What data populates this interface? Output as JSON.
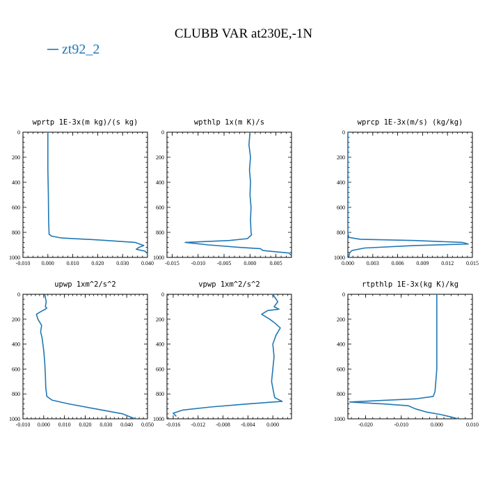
{
  "figure": {
    "title": "CLUBB VAR at230E,-1N",
    "legend": {
      "label": "zt92_2",
      "color": "#1f77b4"
    }
  },
  "chart_data": [
    {
      "type": "line",
      "title": "wprtp  1E-3x(m kg)/(s kg)",
      "xlim": [
        -0.01,
        0.04
      ],
      "ylim": [
        1000,
        0
      ],
      "xticks": [
        -0.01,
        0.0,
        0.01,
        0.02,
        0.03,
        0.04
      ],
      "xticklabels": [
        "-0.010",
        "0.000",
        "0.010",
        "0.020",
        "0.030",
        "0.040"
      ],
      "yticks": [
        0,
        200,
        400,
        600,
        800,
        1000
      ],
      "series": [
        {
          "color": "#1f77b4",
          "x": [
            0.0,
            0.0,
            0.0002,
            0.0003,
            0.0005,
            0.0015,
            0.0055,
            0.02,
            0.035,
            0.0385,
            0.0365,
            0.0355,
            0.039,
            0.04
          ],
          "y": [
            0,
            300,
            500,
            700,
            815,
            830,
            845,
            860,
            880,
            905,
            920,
            935,
            950,
            970
          ]
        }
      ]
    },
    {
      "type": "line",
      "title": "wpthlp  1x(m K)/s",
      "xlim": [
        -0.016,
        0.008
      ],
      "ylim": [
        1000,
        0
      ],
      "xticks": [
        -0.015,
        -0.01,
        -0.005,
        0.0,
        0.005
      ],
      "xticklabels": [
        "-0.015",
        "-0.010",
        "-0.005",
        "0.000",
        "0.005"
      ],
      "yticks": [
        0,
        200,
        400,
        600,
        800,
        1000
      ],
      "series": [
        {
          "color": "#1f77b4",
          "x": [
            0.0,
            -0.0002,
            0.0001,
            -0.0001,
            0.0001,
            0.0,
            0.0002,
            0.0001,
            0.0002,
            0.0003,
            -0.0005,
            -0.004,
            -0.0125,
            -0.008,
            -0.002,
            0.002,
            0.0025,
            0.0075,
            0.008
          ],
          "y": [
            0,
            100,
            200,
            300,
            400,
            500,
            600,
            700,
            800,
            820,
            850,
            865,
            880,
            900,
            920,
            930,
            945,
            965,
            985
          ]
        }
      ]
    },
    {
      "type": "line",
      "title": "wprcp  1E-3x(m/s) (kg/kg)",
      "xlim": [
        0.0,
        0.015
      ],
      "ylim": [
        1000,
        0
      ],
      "xticks": [
        0.0,
        0.003,
        0.006,
        0.009,
        0.012,
        0.015
      ],
      "xticklabels": [
        "0.000",
        "0.003",
        "0.006",
        "0.009",
        "0.012",
        "0.015"
      ],
      "yticks": [
        0,
        200,
        400,
        600,
        800,
        1000
      ],
      "series": [
        {
          "color": "#1f77b4",
          "x": [
            0.0,
            0.0,
            0.0,
            0.0001,
            0.0015,
            0.008,
            0.0138,
            0.0145,
            0.008,
            0.002,
            0.0005,
            0.0002,
            0.0001
          ],
          "y": [
            0,
            400,
            800,
            840,
            855,
            865,
            880,
            893,
            905,
            925,
            945,
            965,
            1000
          ]
        }
      ]
    },
    {
      "type": "line",
      "title": "upwp  1xm^2/s^2",
      "xlim": [
        -0.01,
        0.05
      ],
      "ylim": [
        1000,
        0
      ],
      "xticks": [
        -0.01,
        0.0,
        0.01,
        0.02,
        0.03,
        0.04,
        0.05
      ],
      "xticklabels": [
        "-0.010",
        "0.000",
        "0.010",
        "0.020",
        "0.030",
        "0.040",
        "0.050"
      ],
      "yticks": [
        0,
        200,
        400,
        600,
        800,
        1000
      ],
      "series": [
        {
          "color": "#1f77b4",
          "x": [
            0.0005,
            0.0012,
            0.0008,
            0.0015,
            0.0008,
            -0.001,
            -0.0035,
            -0.0028,
            -0.001,
            -0.0015,
            -0.0008,
            0.0,
            0.0005,
            0.0008,
            0.001,
            0.0015,
            0.004,
            0.012,
            0.025,
            0.038,
            0.044
          ],
          "y": [
            0,
            60,
            100,
            110,
            120,
            135,
            160,
            200,
            250,
            300,
            350,
            450,
            550,
            650,
            750,
            820,
            850,
            880,
            920,
            960,
            1000
          ]
        }
      ]
    },
    {
      "type": "line",
      "title": "vpwp  1xm^2/s^2",
      "xlim": [
        -0.017,
        0.003
      ],
      "ylim": [
        1000,
        0
      ],
      "xticks": [
        -0.016,
        -0.012,
        -0.008,
        -0.004,
        0.0
      ],
      "xticklabels": [
        "-0.016",
        "-0.012",
        "-0.008",
        "-0.004",
        "0.000"
      ],
      "yticks": [
        0,
        200,
        400,
        600,
        800,
        1000
      ],
      "series": [
        {
          "color": "#1f77b4",
          "x": [
            0.0,
            0.0008,
            0.0002,
            0.001,
            -0.0008,
            -0.0018,
            -0.0005,
            0.0003,
            0.0012,
            0.0005,
            0.0,
            0.0002,
            0.0,
            -0.0002,
            0.0001,
            0.0003,
            0.0015,
            -0.004,
            -0.01,
            -0.0145,
            -0.016,
            -0.0155
          ],
          "y": [
            0,
            60,
            100,
            120,
            130,
            160,
            200,
            230,
            270,
            330,
            400,
            500,
            600,
            700,
            780,
            830,
            860,
            880,
            905,
            930,
            955,
            980
          ]
        }
      ]
    },
    {
      "type": "line",
      "title": "rtpthlp  1E-3x(kg K)/kg",
      "xlim": [
        -0.025,
        0.01
      ],
      "ylim": [
        1000,
        0
      ],
      "xticks": [
        -0.02,
        -0.01,
        0.0,
        0.01
      ],
      "xticklabels": [
        "-0.020",
        "-0.010",
        "0.000",
        "0.010"
      ],
      "yticks": [
        0,
        200,
        400,
        600,
        800,
        1000
      ],
      "series": [
        {
          "color": "#1f77b4",
          "x": [
            0.0,
            0.0,
            0.0,
            -0.0005,
            -0.001,
            -0.006,
            -0.0175,
            -0.0245,
            -0.015,
            -0.008,
            -0.006,
            -0.003,
            0.001,
            0.004,
            0.006
          ],
          "y": [
            0,
            300,
            600,
            780,
            820,
            840,
            855,
            865,
            880,
            895,
            920,
            945,
            965,
            985,
            1000
          ]
        }
      ]
    }
  ]
}
